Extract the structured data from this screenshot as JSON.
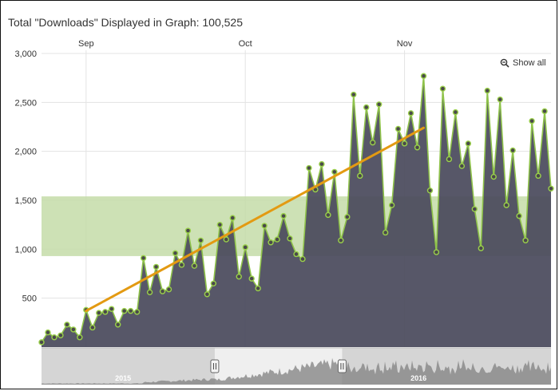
{
  "header": {
    "title": "Total \"Downloads\" Displayed in Graph: 100,525",
    "show_all_label": "Show all",
    "show_all_icon": "zoom-out-icon"
  },
  "colors": {
    "area_fill": "#4a4a5c",
    "area_line": "#8fc34a",
    "marker_fill": "#4a4a4a",
    "marker_stroke": "#9ad04a",
    "trend": "#e39a12",
    "band": "#c4dca8",
    "navigator_bg": "#d5d5d5",
    "navigator_selected": "#efefef",
    "navigator_series": "#808080"
  },
  "chart_data": {
    "type": "area",
    "ylim": [
      0,
      3000
    ],
    "yticks": [
      "3,000",
      "2,500",
      "2,000",
      "1,500",
      "1,000",
      "500"
    ],
    "ytick_values": [
      3000,
      2500,
      2000,
      1500,
      1000,
      500
    ],
    "xticks": [
      "Sep",
      "Oct",
      "Nov"
    ],
    "xtick_positions": [
      7,
      32,
      57
    ],
    "plot_band": {
      "from": 930,
      "to": 1540
    },
    "series": [
      {
        "type": "area",
        "values": [
          50,
          150,
          100,
          120,
          230,
          180,
          100,
          380,
          200,
          350,
          360,
          390,
          230,
          370,
          370,
          360,
          910,
          560,
          820,
          570,
          590,
          960,
          840,
          1190,
          830,
          1090,
          540,
          650,
          1250,
          1100,
          1320,
          720,
          1020,
          700,
          600,
          1240,
          1070,
          1100,
          1340,
          1110,
          950,
          900,
          1830,
          1610,
          1870,
          1350,
          1790,
          1090,
          1330,
          2580,
          1750,
          2450,
          2090,
          2480,
          1170,
          1450,
          2230,
          2080,
          2390,
          2040,
          2770,
          1600,
          970,
          2640,
          1920,
          2400,
          1850,
          2080,
          1410,
          1010,
          2620,
          1740,
          2530,
          1450,
          2010,
          1340,
          1090,
          2310,
          1750,
          2410,
          1620
        ]
      },
      {
        "type": "trend",
        "x": [
          7,
          60
        ],
        "y": [
          370,
          2240
        ]
      }
    ],
    "navigator": {
      "labels": [
        "2015",
        "2016"
      ],
      "range_start": 0.34,
      "range_end": 0.59
    }
  }
}
